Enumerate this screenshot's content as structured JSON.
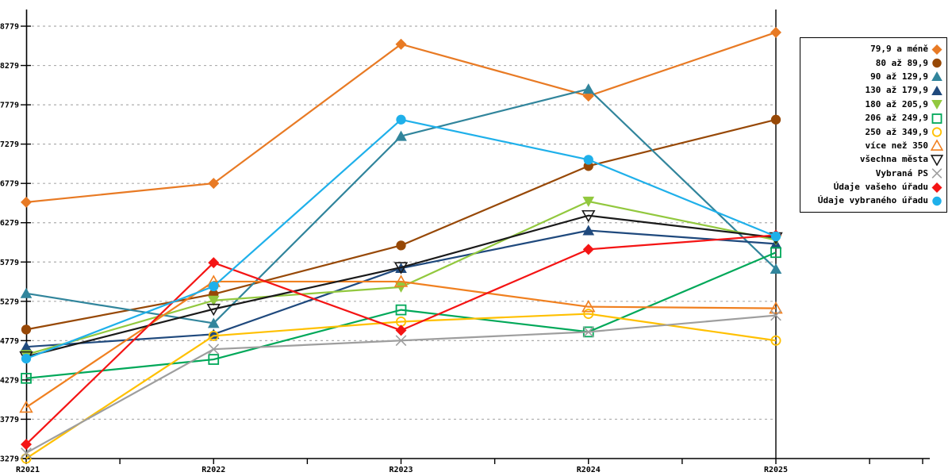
{
  "chart_data": {
    "type": "line",
    "title": "",
    "xlabel": "",
    "ylabel": "",
    "categories": [
      "R2021",
      "R2022",
      "R2023",
      "R2024",
      "R2025"
    ],
    "y_ticks": [
      3279,
      3779,
      4279,
      4779,
      5279,
      5779,
      6279,
      6779,
      7279,
      7779,
      8279,
      8779
    ],
    "ylim": [
      3279,
      8779
    ],
    "grid": "horizontal-dashed",
    "legend_position": "right-box",
    "series": [
      {
        "name": "79,9 a méně",
        "slug": "le-79",
        "color": "#E87A24",
        "marker": "diamond",
        "values": [
          6540,
          6780,
          8550,
          7890,
          8700
        ]
      },
      {
        "name": "80 až 89,9",
        "slug": "80-89",
        "color": "#974806",
        "marker": "circle",
        "values": [
          4920,
          5370,
          5990,
          7000,
          7590
        ]
      },
      {
        "name": "90 až 129,9",
        "slug": "90-129",
        "color": "#31859C",
        "marker": "triangle-up",
        "values": [
          5380,
          5000,
          7380,
          7980,
          5690
        ]
      },
      {
        "name": "130 až 179,9",
        "slug": "130-179",
        "color": "#1F497D",
        "marker": "triangle-up",
        "values": [
          4700,
          4860,
          5700,
          6180,
          6010
        ]
      },
      {
        "name": "180 až 205,9",
        "slug": "180-205",
        "color": "#92C83E",
        "marker": "triangle-down",
        "values": [
          4600,
          5290,
          5460,
          6550,
          6060
        ]
      },
      {
        "name": "206 až 249,9",
        "slug": "206-249",
        "color": "#00A859",
        "marker": "square-open",
        "values": [
          4300,
          4540,
          5170,
          4890,
          5900
        ]
      },
      {
        "name": "250 až 349,9",
        "slug": "250-349",
        "color": "#FFC000",
        "marker": "circle-open",
        "values": [
          3280,
          4840,
          5020,
          5120,
          4780
        ]
      },
      {
        "name": "více než 350",
        "slug": "gt-350",
        "color": "#F08020",
        "marker": "triangle-open",
        "values": [
          3930,
          5530,
          5530,
          5210,
          5190
        ]
      },
      {
        "name": "všechna města",
        "slug": "all-cities",
        "color": "#1A1A1A",
        "marker": "triangle-down-open",
        "values": [
          4575,
          5180,
          5710,
          6370,
          6090
        ]
      },
      {
        "name": "Vybraná PS",
        "slug": "vybrana-ps",
        "color": "#9E9E9E",
        "marker": "x",
        "values": [
          3350,
          4670,
          4780,
          4890,
          5100
        ]
      },
      {
        "name": "Údaje vašeho úřadu",
        "slug": "your-office",
        "color": "#F41414",
        "marker": "diamond",
        "values": [
          3460,
          5770,
          4910,
          5940,
          6120
        ]
      },
      {
        "name": "Údaje vybraného úřadu",
        "slug": "selected-office",
        "color": "#1FB0EA",
        "marker": "circle",
        "values": [
          4550,
          5470,
          7590,
          7080,
          6105
        ]
      }
    ]
  },
  "colors": {
    "grid": "#ADADAD",
    "axis": "#000000",
    "background": "#FFFFFF"
  }
}
